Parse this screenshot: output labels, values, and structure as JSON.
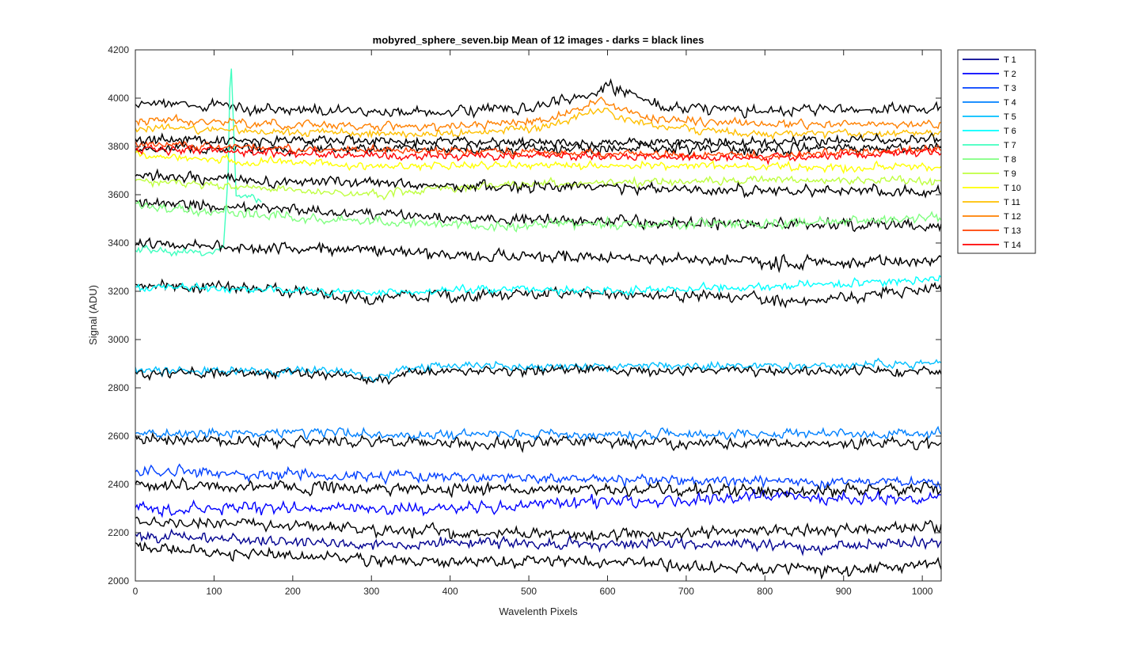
{
  "chart_data": {
    "type": "line",
    "title": "mobyred_sphere_seven.bip  Mean of 12 images - darks = black lines",
    "xlabel": "Wavelenth Pixels",
    "ylabel": "Signal (ADU)",
    "xlim": [
      0,
      1024
    ],
    "ylim": [
      2000,
      4200
    ],
    "xticks": [
      0,
      100,
      200,
      300,
      400,
      500,
      600,
      700,
      800,
      900,
      1000
    ],
    "yticks": [
      2000,
      2200,
      2400,
      2600,
      2800,
      3000,
      3200,
      3400,
      3600,
      3800,
      4000,
      4200
    ],
    "legend_position": "outside-top-right",
    "grid": false,
    "series": [
      {
        "name": "T 1",
        "color": "#00008f",
        "noise": 20,
        "anchors": [
          [
            0,
            2190
          ],
          [
            150,
            2170
          ],
          [
            300,
            2150
          ],
          [
            450,
            2160
          ],
          [
            600,
            2150
          ],
          [
            750,
            2160
          ],
          [
            850,
            2140
          ],
          [
            1024,
            2165
          ]
        ]
      },
      {
        "name": "T 2",
        "color": "#0000ff",
        "noise": 22,
        "anchors": [
          [
            0,
            2300
          ],
          [
            200,
            2300
          ],
          [
            400,
            2300
          ],
          [
            600,
            2330
          ],
          [
            800,
            2350
          ],
          [
            1024,
            2340
          ]
        ]
      },
      {
        "name": "T 3",
        "color": "#0040ff",
        "noise": 20,
        "anchors": [
          [
            0,
            2450
          ],
          [
            200,
            2440
          ],
          [
            400,
            2430
          ],
          [
            600,
            2420
          ],
          [
            800,
            2410
          ],
          [
            1024,
            2410
          ]
        ]
      },
      {
        "name": "T 4",
        "color": "#0080ff",
        "noise": 18,
        "anchors": [
          [
            0,
            2610
          ],
          [
            200,
            2615
          ],
          [
            400,
            2605
          ],
          [
            600,
            2605
          ],
          [
            800,
            2610
          ],
          [
            1024,
            2610
          ]
        ]
      },
      {
        "name": "T 5",
        "color": "#00bfff",
        "noise": 15,
        "anchors": [
          [
            0,
            2870
          ],
          [
            260,
            2870
          ],
          [
            300,
            2840
          ],
          [
            360,
            2890
          ],
          [
            600,
            2890
          ],
          [
            800,
            2890
          ],
          [
            1024,
            2900
          ]
        ]
      },
      {
        "name": "T 6",
        "color": "#00ffff",
        "noise": 15,
        "anchors": [
          [
            0,
            3220
          ],
          [
            150,
            3210
          ],
          [
            300,
            3190
          ],
          [
            450,
            3210
          ],
          [
            600,
            3200
          ],
          [
            800,
            3220
          ],
          [
            1024,
            3250
          ]
        ]
      },
      {
        "name": "T 7",
        "color": "#40ffbf",
        "noise": 15,
        "anchors": [
          [
            0,
            3370
          ],
          [
            100,
            3360
          ],
          [
            112,
            3390
          ],
          [
            118,
            3700
          ],
          [
            121,
            4200
          ],
          [
            124,
            3950
          ],
          [
            128,
            3600
          ],
          [
            160,
            3580
          ]
        ]
      },
      {
        "name": "T 8",
        "color": "#80ff80",
        "noise": 18,
        "anchors": [
          [
            0,
            3550
          ],
          [
            150,
            3520
          ],
          [
            300,
            3490
          ],
          [
            450,
            3470
          ],
          [
            600,
            3480
          ],
          [
            800,
            3480
          ],
          [
            1024,
            3500
          ]
        ]
      },
      {
        "name": "T 9",
        "color": "#bfff40",
        "noise": 15,
        "anchors": [
          [
            0,
            3660
          ],
          [
            150,
            3630
          ],
          [
            300,
            3600
          ],
          [
            450,
            3640
          ],
          [
            600,
            3650
          ],
          [
            800,
            3660
          ],
          [
            1024,
            3660
          ]
        ]
      },
      {
        "name": "T 10",
        "color": "#ffff00",
        "noise": 15,
        "anchors": [
          [
            0,
            3760
          ],
          [
            150,
            3740
          ],
          [
            300,
            3720
          ],
          [
            500,
            3720
          ],
          [
            700,
            3720
          ],
          [
            900,
            3710
          ],
          [
            1024,
            3720
          ]
        ]
      },
      {
        "name": "T 11",
        "color": "#ffbf00",
        "noise": 15,
        "anchors": [
          [
            0,
            3880
          ],
          [
            200,
            3860
          ],
          [
            400,
            3850
          ],
          [
            520,
            3880
          ],
          [
            590,
            3950
          ],
          [
            660,
            3880
          ],
          [
            800,
            3850
          ],
          [
            1024,
            3860
          ]
        ]
      },
      {
        "name": "T 12",
        "color": "#ff8000",
        "noise": 15,
        "anchors": [
          [
            0,
            3910
          ],
          [
            200,
            3890
          ],
          [
            400,
            3880
          ],
          [
            520,
            3910
          ],
          [
            590,
            3990
          ],
          [
            660,
            3910
          ],
          [
            800,
            3890
          ],
          [
            1024,
            3890
          ]
        ]
      },
      {
        "name": "T 13",
        "color": "#ff4000",
        "noise": 15,
        "anchors": [
          [
            0,
            3810
          ],
          [
            200,
            3790
          ],
          [
            400,
            3780
          ],
          [
            600,
            3770
          ],
          [
            800,
            3760
          ],
          [
            1024,
            3790
          ]
        ]
      },
      {
        "name": "T 14",
        "color": "#ff0000",
        "noise": 15,
        "anchors": [
          [
            0,
            3790
          ],
          [
            200,
            3770
          ],
          [
            400,
            3760
          ],
          [
            600,
            3760
          ],
          [
            800,
            3750
          ],
          [
            1024,
            3780
          ]
        ]
      }
    ],
    "dark_series": [
      {
        "color": "#000000",
        "noise": 22,
        "anchors": [
          [
            0,
            2140
          ],
          [
            200,
            2100
          ],
          [
            400,
            2080
          ],
          [
            600,
            2080
          ],
          [
            800,
            2050
          ],
          [
            900,
            2040
          ],
          [
            1024,
            2080
          ]
        ]
      },
      {
        "color": "#000000",
        "noise": 22,
        "anchors": [
          [
            0,
            2250
          ],
          [
            200,
            2230
          ],
          [
            400,
            2200
          ],
          [
            600,
            2190
          ],
          [
            800,
            2210
          ],
          [
            1024,
            2220
          ]
        ]
      },
      {
        "color": "#000000",
        "noise": 22,
        "anchors": [
          [
            0,
            2400
          ],
          [
            200,
            2390
          ],
          [
            400,
            2380
          ],
          [
            600,
            2380
          ],
          [
            800,
            2370
          ],
          [
            1024,
            2380
          ]
        ]
      },
      {
        "color": "#000000",
        "noise": 20,
        "anchors": [
          [
            0,
            2590
          ],
          [
            200,
            2580
          ],
          [
            400,
            2570
          ],
          [
            600,
            2575
          ],
          [
            800,
            2570
          ],
          [
            1024,
            2570
          ]
        ]
      },
      {
        "color": "#000000",
        "noise": 18,
        "anchors": [
          [
            0,
            2860
          ],
          [
            260,
            2860
          ],
          [
            300,
            2820
          ],
          [
            360,
            2870
          ],
          [
            600,
            2875
          ],
          [
            800,
            2870
          ],
          [
            1024,
            2870
          ]
        ]
      },
      {
        "color": "#000000",
        "noise": 22,
        "anchors": [
          [
            0,
            3230
          ],
          [
            200,
            3200
          ],
          [
            300,
            3170
          ],
          [
            500,
            3190
          ],
          [
            700,
            3180
          ],
          [
            850,
            3160
          ],
          [
            1024,
            3210
          ]
        ]
      },
      {
        "color": "#000000",
        "noise": 22,
        "anchors": [
          [
            0,
            3400
          ],
          [
            200,
            3380
          ],
          [
            400,
            3350
          ],
          [
            600,
            3340
          ],
          [
            800,
            3320
          ],
          [
            1024,
            3320
          ]
        ]
      },
      {
        "color": "#000000",
        "noise": 22,
        "anchors": [
          [
            0,
            3570
          ],
          [
            200,
            3540
          ],
          [
            400,
            3500
          ],
          [
            600,
            3490
          ],
          [
            800,
            3480
          ],
          [
            1024,
            3470
          ]
        ]
      },
      {
        "color": "#000000",
        "noise": 20,
        "anchors": [
          [
            0,
            3680
          ],
          [
            200,
            3650
          ],
          [
            400,
            3640
          ],
          [
            600,
            3630
          ],
          [
            800,
            3620
          ],
          [
            1024,
            3610
          ]
        ]
      },
      {
        "color": "#000000",
        "noise": 18,
        "anchors": [
          [
            0,
            3800
          ],
          [
            200,
            3790
          ],
          [
            400,
            3790
          ],
          [
            600,
            3790
          ],
          [
            800,
            3790
          ],
          [
            1024,
            3800
          ]
        ]
      },
      {
        "color": "#000000",
        "noise": 18,
        "anchors": [
          [
            0,
            3830
          ],
          [
            200,
            3820
          ],
          [
            400,
            3820
          ],
          [
            600,
            3815
          ],
          [
            800,
            3820
          ],
          [
            1024,
            3830
          ]
        ]
      },
      {
        "color": "#000000",
        "noise": 20,
        "anchors": [
          [
            0,
            3980
          ],
          [
            200,
            3950
          ],
          [
            400,
            3940
          ],
          [
            520,
            3960
          ],
          [
            600,
            4050
          ],
          [
            680,
            3960
          ],
          [
            800,
            3950
          ],
          [
            1024,
            3960
          ]
        ]
      }
    ]
  }
}
